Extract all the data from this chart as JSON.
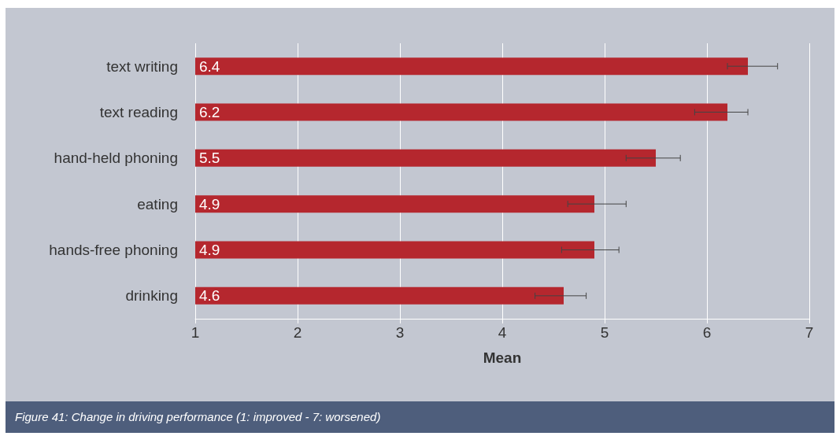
{
  "chart_data": {
    "type": "bar",
    "orientation": "horizontal",
    "xlabel": "Mean",
    "annotations": [
      "Figure 41: Change in driving performance (1: improved - 7: worsened)"
    ],
    "categories": [
      "text writing",
      "text reading",
      "hand-held phoning",
      "eating",
      "hands-free phoning",
      "drinking"
    ],
    "values": [
      6.4,
      6.2,
      5.5,
      4.9,
      4.9,
      4.6
    ],
    "errors": [
      [
        6.2,
        6.69
      ],
      [
        5.88,
        6.4
      ],
      [
        5.21,
        5.74
      ],
      [
        4.64,
        5.21
      ],
      [
        4.58,
        5.14
      ],
      [
        4.32,
        4.82
      ]
    ],
    "color": "#b5272e",
    "data_labels": true,
    "grid": "x",
    "xlim": [
      1,
      7
    ],
    "xticks": [
      1,
      2,
      3,
      4,
      5,
      6,
      7
    ]
  }
}
